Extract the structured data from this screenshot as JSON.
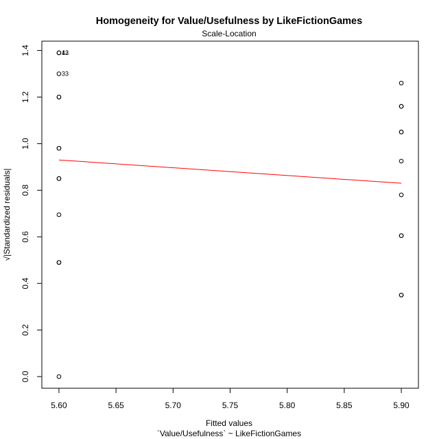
{
  "chart_data": {
    "type": "scatter",
    "title": "Homogeneity for Value/Usefulness by LikeFictionGames",
    "subtitle": "Scale-Location",
    "xlabel": "Fitted values",
    "xlabel2": "`Value/Usefulness` ~ LikeFictionGames",
    "ylabel": "√|Standardized residuals|",
    "xlim": [
      5.585,
      5.915
    ],
    "ylim": [
      -0.05,
      1.44
    ],
    "x_ticks": [
      5.6,
      5.65,
      5.7,
      5.75,
      5.8,
      5.85,
      5.9
    ],
    "x_tick_labels": [
      "5.60",
      "5.65",
      "5.70",
      "5.75",
      "5.80",
      "5.85",
      "5.90"
    ],
    "y_ticks": [
      0.0,
      0.2,
      0.4,
      0.6,
      0.8,
      1.0,
      1.2,
      1.4
    ],
    "y_tick_labels": [
      "0.0",
      "0.2",
      "0.4",
      "0.6",
      "0.8",
      "1.0",
      "1.2",
      "1.4"
    ],
    "grid": false,
    "point_color": "#000000",
    "line_color": "#ff0000",
    "series": [
      {
        "points": [
          {
            "x": 5.6,
            "y": 1.39
          },
          {
            "x": 5.6,
            "y": 1.39
          },
          {
            "x": 5.6,
            "y": 1.3
          },
          {
            "x": 5.6,
            "y": 1.2
          },
          {
            "x": 5.6,
            "y": 1.2
          },
          {
            "x": 5.6,
            "y": 0.98
          },
          {
            "x": 5.6,
            "y": 0.98
          },
          {
            "x": 5.6,
            "y": 0.85
          },
          {
            "x": 5.6,
            "y": 0.85
          },
          {
            "x": 5.6,
            "y": 0.695
          },
          {
            "x": 5.6,
            "y": 0.49
          },
          {
            "x": 5.6,
            "y": 0.49
          },
          {
            "x": 5.6,
            "y": 0.0
          },
          {
            "x": 5.9,
            "y": 1.26
          },
          {
            "x": 5.9,
            "y": 1.16
          },
          {
            "x": 5.9,
            "y": 1.16
          },
          {
            "x": 5.9,
            "y": 1.05
          },
          {
            "x": 5.9,
            "y": 1.05
          },
          {
            "x": 5.9,
            "y": 0.925
          },
          {
            "x": 5.9,
            "y": 0.78
          },
          {
            "x": 5.9,
            "y": 0.605
          },
          {
            "x": 5.9,
            "y": 0.605
          },
          {
            "x": 5.9,
            "y": 0.35
          },
          {
            "x": 5.9,
            "y": 0.35
          }
        ]
      }
    ],
    "smooth_line": [
      {
        "x": 5.6,
        "y": 0.93
      },
      {
        "x": 5.9,
        "y": 0.83
      }
    ],
    "point_labels": [
      {
        "x": 5.6,
        "y": 1.39,
        "text": "12"
      },
      {
        "x": 5.6,
        "y": 1.39,
        "text": "43"
      },
      {
        "x": 5.6,
        "y": 1.3,
        "text": "33"
      }
    ]
  }
}
